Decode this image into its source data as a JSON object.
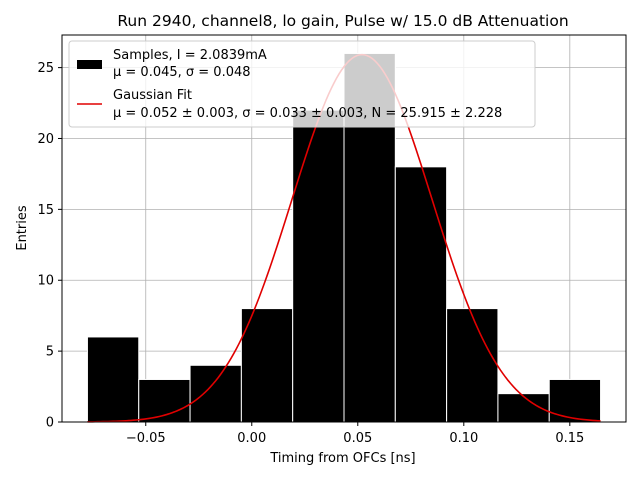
{
  "chart_data": {
    "type": "bar",
    "title": "Run 2940, channel8, lo gain, Pulse w/ 15.0 dB Attenuation",
    "xlabel": "Timing from OFCs [ns]",
    "ylabel": "Entries",
    "xlim": [
      -0.0895,
      0.1765
    ],
    "ylim": [
      0,
      27.3
    ],
    "grid": true,
    "legend_position": "top-left",
    "x_ticks": [
      {
        "value": -0.05,
        "label": "−0.05"
      },
      {
        "value": 0.0,
        "label": "0.00"
      },
      {
        "value": 0.05,
        "label": "0.05"
      },
      {
        "value": 0.1,
        "label": "0.10"
      },
      {
        "value": 0.15,
        "label": "0.15"
      }
    ],
    "y_ticks": [
      {
        "value": 0,
        "label": "0"
      },
      {
        "value": 5,
        "label": "5"
      },
      {
        "value": 10,
        "label": "10"
      },
      {
        "value": 15,
        "label": "15"
      },
      {
        "value": 20,
        "label": "20"
      },
      {
        "value": 25,
        "label": "25"
      }
    ],
    "bin_edges": [
      -0.0775,
      -0.0533,
      -0.0291,
      -0.0049,
      0.0193,
      0.0435,
      0.0677,
      0.0919,
      0.1161,
      0.1403,
      0.1645
    ],
    "values": [
      6,
      3,
      4,
      8,
      22,
      26,
      18,
      8,
      2,
      3
    ],
    "fit": {
      "mu": 0.052,
      "sigma": 0.033,
      "N": 25.915,
      "x_range": [
        -0.0775,
        0.1645
      ]
    },
    "legend": [
      {
        "label_line1": "Samples, I = 2.0839mA",
        "label_line2": "μ = 0.045, σ = 0.048",
        "color": "#000000",
        "kind": "patch"
      },
      {
        "label_line1": "Gaussian Fit",
        "label_line2": "μ = 0.052 ± 0.003, σ = 0.033 ± 0.003, N = 25.915 ± 2.228",
        "color": "#e00000",
        "kind": "line"
      }
    ]
  }
}
